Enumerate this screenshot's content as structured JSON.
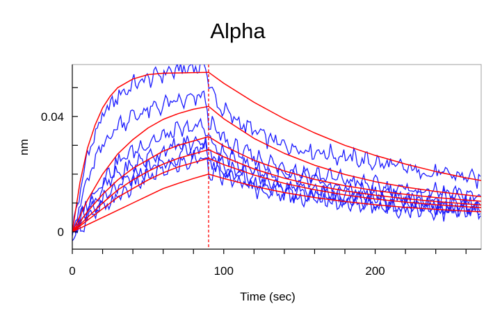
{
  "chart_data": {
    "type": "line",
    "title": "Alpha",
    "xlabel": "Time (sec)",
    "ylabel": "nm",
    "xlim": [
      0,
      270
    ],
    "ylim": [
      -0.006,
      0.058
    ],
    "x_ticks": [
      0,
      100,
      200
    ],
    "x_tick_labels": [
      "0",
      "100",
      "200"
    ],
    "y_ticks": [
      0,
      0.04
    ],
    "y_tick_labels": [
      "0",
      "0.04"
    ],
    "grid": false,
    "legend": "none",
    "association_end": 90,
    "colors": {
      "data": "#1a1aff",
      "fit": "#ff0000",
      "marker": "#ff0000"
    },
    "series": [
      {
        "role": "data",
        "x": [
          0,
          10,
          20,
          30,
          40,
          50,
          60,
          70,
          80,
          88,
          90,
          95,
          100,
          110,
          120,
          130,
          140,
          150,
          160,
          170,
          180,
          190,
          200,
          210,
          220,
          230,
          240,
          250,
          260,
          270
        ],
        "values": [
          0.0,
          0.027,
          0.04,
          0.047,
          0.051,
          0.053,
          0.055,
          0.056,
          0.057,
          0.058,
          0.052,
          0.045,
          0.042,
          0.038,
          0.035,
          0.032,
          0.03,
          0.029,
          0.028,
          0.027,
          0.026,
          0.025,
          0.024,
          0.023,
          0.022,
          0.021,
          0.02,
          0.02,
          0.019,
          0.018
        ]
      },
      {
        "role": "data",
        "x": [
          0,
          10,
          20,
          30,
          40,
          50,
          60,
          70,
          80,
          88,
          90,
          95,
          100,
          110,
          120,
          130,
          140,
          150,
          160,
          170,
          180,
          190,
          200,
          210,
          220,
          230,
          240,
          250,
          260,
          270
        ],
        "values": [
          0.0,
          0.018,
          0.03,
          0.037,
          0.04,
          0.042,
          0.044,
          0.045,
          0.046,
          0.047,
          0.038,
          0.035,
          0.032,
          0.028,
          0.026,
          0.024,
          0.022,
          0.021,
          0.02,
          0.019,
          0.018,
          0.017,
          0.016,
          0.015,
          0.015,
          0.014,
          0.014,
          0.013,
          0.013,
          0.012
        ]
      },
      {
        "role": "data",
        "x": [
          0,
          10,
          20,
          30,
          40,
          50,
          60,
          70,
          80,
          88,
          90,
          95,
          100,
          110,
          120,
          130,
          140,
          150,
          160,
          170,
          180,
          190,
          200,
          210,
          220,
          230,
          240,
          250,
          260,
          270
        ],
        "values": [
          0.0,
          0.01,
          0.018,
          0.024,
          0.028,
          0.031,
          0.033,
          0.035,
          0.036,
          0.037,
          0.032,
          0.029,
          0.027,
          0.024,
          0.022,
          0.02,
          0.019,
          0.018,
          0.017,
          0.016,
          0.015,
          0.014,
          0.014,
          0.013,
          0.012,
          0.012,
          0.011,
          0.011,
          0.011,
          0.01
        ]
      },
      {
        "role": "data",
        "x": [
          0,
          10,
          20,
          30,
          40,
          50,
          60,
          70,
          80,
          88,
          90,
          95,
          100,
          110,
          120,
          130,
          140,
          150,
          160,
          170,
          180,
          190,
          200,
          210,
          220,
          230,
          240,
          250,
          260,
          270
        ],
        "values": [
          0.0,
          0.008,
          0.015,
          0.02,
          0.023,
          0.026,
          0.028,
          0.03,
          0.031,
          0.032,
          0.028,
          0.025,
          0.023,
          0.021,
          0.019,
          0.017,
          0.016,
          0.015,
          0.014,
          0.013,
          0.012,
          0.012,
          0.011,
          0.011,
          0.01,
          0.01,
          0.009,
          0.009,
          0.009,
          0.008
        ]
      },
      {
        "role": "data",
        "x": [
          0,
          10,
          20,
          30,
          40,
          50,
          60,
          70,
          80,
          88,
          90,
          95,
          100,
          110,
          120,
          130,
          140,
          150,
          160,
          170,
          180,
          190,
          200,
          210,
          220,
          230,
          240,
          250,
          260,
          270
        ],
        "values": [
          0.0,
          0.006,
          0.011,
          0.015,
          0.019,
          0.022,
          0.024,
          0.026,
          0.028,
          0.029,
          0.025,
          0.023,
          0.021,
          0.019,
          0.017,
          0.016,
          0.015,
          0.014,
          0.013,
          0.012,
          0.011,
          0.011,
          0.01,
          0.01,
          0.009,
          0.009,
          0.008,
          0.008,
          0.008,
          0.007
        ]
      },
      {
        "role": "data",
        "x": [
          0,
          10,
          20,
          30,
          40,
          50,
          60,
          70,
          80,
          88,
          90,
          95,
          100,
          110,
          120,
          130,
          140,
          150,
          160,
          170,
          180,
          190,
          200,
          210,
          220,
          230,
          240,
          250,
          260,
          270
        ],
        "values": [
          0.0,
          0.004,
          0.008,
          0.012,
          0.016,
          0.019,
          0.021,
          0.023,
          0.025,
          0.026,
          0.022,
          0.02,
          0.019,
          0.017,
          0.015,
          0.014,
          0.013,
          0.012,
          0.011,
          0.011,
          0.01,
          0.009,
          0.009,
          0.008,
          0.008,
          0.008,
          0.007,
          0.007,
          0.007,
          0.006
        ]
      },
      {
        "role": "fit",
        "x": [
          0,
          5,
          10,
          15,
          20,
          25,
          30,
          40,
          50,
          60,
          70,
          80,
          90,
          100,
          120,
          140,
          160,
          180,
          200,
          220,
          240,
          260,
          270
        ],
        "values": [
          0.0,
          0.017,
          0.029,
          0.037,
          0.043,
          0.047,
          0.05,
          0.053,
          0.0545,
          0.055,
          0.0551,
          0.0552,
          0.0553,
          0.0515,
          0.0449,
          0.0392,
          0.0343,
          0.03,
          0.0265,
          0.0235,
          0.0209,
          0.0187,
          0.0178
        ]
      },
      {
        "role": "fit",
        "x": [
          0,
          10,
          20,
          30,
          40,
          50,
          60,
          70,
          80,
          90,
          100,
          120,
          140,
          160,
          180,
          200,
          220,
          240,
          260,
          270
        ],
        "values": [
          0.0,
          0.011,
          0.02,
          0.027,
          0.032,
          0.036,
          0.039,
          0.041,
          0.0425,
          0.0435,
          0.0392,
          0.0324,
          0.0272,
          0.0231,
          0.0199,
          0.0174,
          0.0155,
          0.014,
          0.0128,
          0.0122
        ]
      },
      {
        "role": "fit",
        "x": [
          0,
          10,
          20,
          30,
          40,
          50,
          60,
          70,
          80,
          90,
          100,
          120,
          140,
          160,
          180,
          200,
          220,
          240,
          260,
          270
        ],
        "values": [
          0.0,
          0.007,
          0.013,
          0.018,
          0.022,
          0.025,
          0.028,
          0.03,
          0.0315,
          0.033,
          0.0298,
          0.0248,
          0.0211,
          0.0182,
          0.016,
          0.0143,
          0.013,
          0.0119,
          0.011,
          0.0106
        ]
      },
      {
        "role": "fit",
        "x": [
          0,
          10,
          20,
          30,
          40,
          50,
          60,
          70,
          80,
          90,
          100,
          120,
          140,
          160,
          180,
          200,
          220,
          240,
          260,
          270
        ],
        "values": [
          0.0,
          0.005,
          0.01,
          0.0145,
          0.018,
          0.021,
          0.0235,
          0.0255,
          0.027,
          0.0285,
          0.026,
          0.0218,
          0.0186,
          0.0161,
          0.0142,
          0.0127,
          0.0115,
          0.0105,
          0.0097,
          0.0093
        ]
      },
      {
        "role": "fit",
        "x": [
          0,
          10,
          20,
          30,
          40,
          50,
          60,
          70,
          80,
          90,
          100,
          120,
          140,
          160,
          180,
          200,
          220,
          240,
          260,
          270
        ],
        "values": [
          0.0,
          0.004,
          0.008,
          0.012,
          0.015,
          0.018,
          0.0205,
          0.0225,
          0.024,
          0.0255,
          0.0233,
          0.0197,
          0.0168,
          0.0146,
          0.0128,
          0.0114,
          0.0103,
          0.0094,
          0.0087,
          0.0084
        ]
      },
      {
        "role": "fit",
        "x": [
          0,
          10,
          20,
          30,
          40,
          50,
          60,
          70,
          80,
          90,
          100,
          120,
          140,
          160,
          180,
          200,
          220,
          240,
          260,
          270
        ],
        "values": [
          0.0,
          0.0025,
          0.005,
          0.0075,
          0.01,
          0.0125,
          0.015,
          0.0168,
          0.0185,
          0.02,
          0.0185,
          0.0158,
          0.0136,
          0.0119,
          0.0105,
          0.0094,
          0.0085,
          0.0078,
          0.0072,
          0.007
        ]
      }
    ]
  }
}
